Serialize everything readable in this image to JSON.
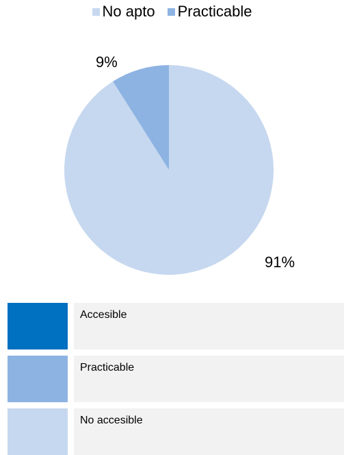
{
  "chart_data": {
    "type": "pie",
    "legend": [
      {
        "label": "No apto",
        "color": "#c6d8ef"
      },
      {
        "label": "Practicable",
        "color": "#8db3e2"
      }
    ],
    "legend_position": "top",
    "slices": [
      {
        "label": "Practicable",
        "value": 9,
        "display": "9%",
        "color": "#8db3e2"
      },
      {
        "label": "No apto",
        "value": 91,
        "display": "91%",
        "color": "#c6d8ef"
      }
    ]
  },
  "key": [
    {
      "label": "Accesible",
      "color": "#0070c0"
    },
    {
      "label": "Practicable",
      "color": "#8db3e2"
    },
    {
      "label": "No accesible",
      "color": "#c6d8ef"
    }
  ]
}
